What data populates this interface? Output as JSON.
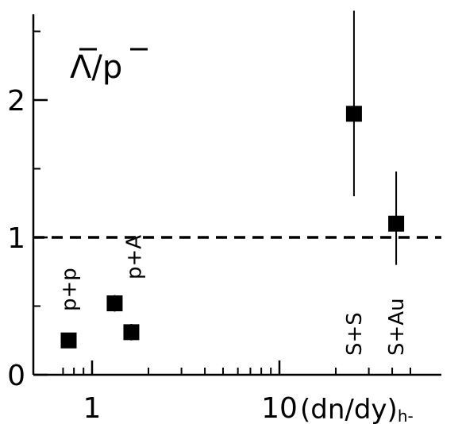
{
  "chart_data": {
    "type": "scatter",
    "x_scale": "log",
    "xlim": [
      0.6,
      60
    ],
    "ylim": [
      0,
      2.6
    ],
    "x_ticks": [
      {
        "value": 1,
        "label": "1"
      },
      {
        "value": 10,
        "label": "10"
      }
    ],
    "y_ticks": [
      {
        "value": 0,
        "label": "0"
      },
      {
        "value": 1,
        "label": "1"
      },
      {
        "value": 2,
        "label": "2"
      }
    ],
    "x_minor_ticks": [
      0.7,
      0.8,
      0.9,
      2,
      3,
      4,
      5,
      6,
      7,
      8,
      9,
      20,
      30,
      40,
      50
    ],
    "y_minor_ticks": [
      0.5,
      1.5,
      2.5
    ],
    "xlabel": "(dn/dy)h-",
    "xlabel_main": "(dn/dy)",
    "xlabel_sub": "h-",
    "ylabel_annotation": "Λ/p",
    "reference_line": {
      "y": 1,
      "style": "dashed"
    },
    "grid": false,
    "points": [
      {
        "x": 0.75,
        "y": 0.25,
        "y_err": 0.05,
        "label": "p+p"
      },
      {
        "x": 1.32,
        "y": 0.52,
        "y_err": 0.06,
        "label": ""
      },
      {
        "x": 1.62,
        "y": 0.31,
        "y_err": 0.06,
        "label": ""
      },
      {
        "x": 25,
        "y": 1.9,
        "y_err_low": 0.6,
        "y_err_high": 0.75,
        "label": "S+S"
      },
      {
        "x": 42,
        "y": 1.1,
        "y_err_low": 0.3,
        "y_err_high": 0.38,
        "label": "S+Au"
      }
    ],
    "group_labels": [
      {
        "text": "p+A",
        "x": 1.5
      }
    ]
  }
}
